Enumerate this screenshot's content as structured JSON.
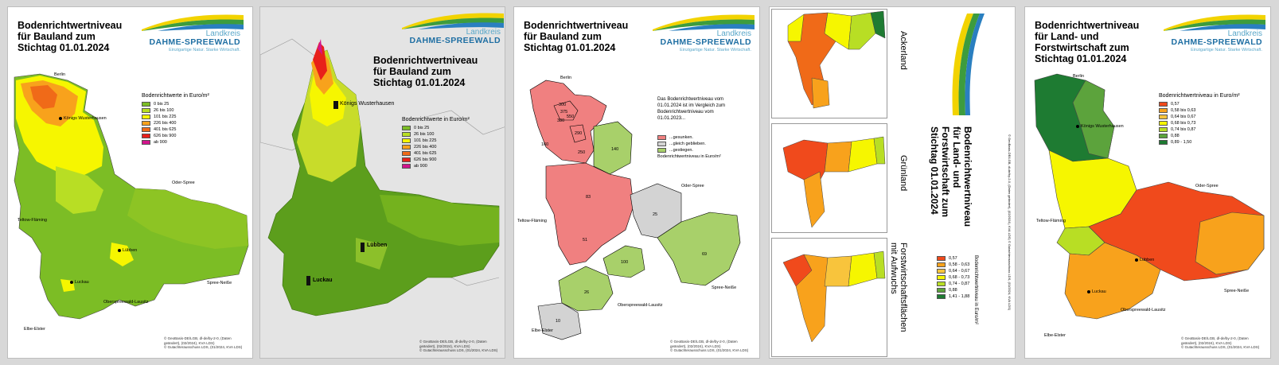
{
  "panel1": {
    "title": "Bodenrichtwertniveau\nfür Bauland zum\nStichtag 01.01.2024",
    "legend_title": "Bodenrichtwerte in Euro/m²",
    "legend": [
      {
        "label": "0 bis 25",
        "color": "#7cbd25"
      },
      {
        "label": "26 bis 100",
        "color": "#b8de24"
      },
      {
        "label": "101 bis 225",
        "color": "#f6f600"
      },
      {
        "label": "226 bis 400",
        "color": "#f8a21c"
      },
      {
        "label": "401 bis 625",
        "color": "#f06a18"
      },
      {
        "label": "626 bis 900",
        "color": "#e8201a"
      },
      {
        "label": "ab 900",
        "color": "#d2148c"
      }
    ],
    "places": [
      "Berlin",
      "Königs Wusterhausen",
      "Oder-Spree",
      "Teltow-Fläming",
      "Lübben",
      "Luckau",
      "Spree-Neiße",
      "Oberspreewald-Lausitz",
      "Elbe-Elster"
    ],
    "credit": "© GeoBasis-DE/LGB, dl-de/by-2-0, (Daten\ngeändert), (02/2024), KVA LDS)\n© Gutachterausschuss LDS, (01/2024, KVA LDS)"
  },
  "panel2": {
    "title": "Bodenrichtwertniveau\nfür Bauland zum\nStichtag 01.01.2024",
    "legend_title": "Bodenrichtwerte in Euro/m²",
    "legend": [
      {
        "label": "0 bis 25",
        "color": "#7cbd25"
      },
      {
        "label": "26 bis 100",
        "color": "#b8de24"
      },
      {
        "label": "101 bis 225",
        "color": "#f6f600"
      },
      {
        "label": "226 bis 400",
        "color": "#f8a21c"
      },
      {
        "label": "401 bis 625",
        "color": "#f06a18"
      },
      {
        "label": "626 bis 900",
        "color": "#e8201a"
      },
      {
        "label": "ab 900",
        "color": "#d2148c"
      }
    ],
    "places": [
      "Königs Wusterhausen",
      "Lübben",
      "Luckau"
    ],
    "credit": "© GeoBasis-DE/LGB, dl-de/by-2-0, (Daten\ngeändert), (02/2024), KVA LDS)\n© Gutachterausschuss LDS, (01/2024, KVA LDS)"
  },
  "panel3": {
    "title": "Bodenrichtwertniveau\nfür Bauland zum\nStichtag 01.01.2024",
    "note": "Das Bodenrichtwertniveau vom\n01.01.2024 ist im Vergleich zum\nBodenrichtwertniveau vom\n01.01.2023...",
    "legend": [
      {
        "label": "...gesunken.",
        "color": "#f08080"
      },
      {
        "label": "...gleich geblieben.",
        "color": "#d3d3d3"
      },
      {
        "label": "...gestiegen.",
        "color": "#a8d06a"
      }
    ],
    "legend_footer": "Bodenrichtwertniveau in Euro/m²",
    "values": [
      "300",
      "375",
      "550",
      "380",
      "290",
      "160",
      "250",
      "140",
      "83",
      "25",
      "51",
      "100",
      "69",
      "26",
      "10"
    ],
    "places": [
      "Berlin",
      "Oder-Spree",
      "Teltow-Fläming",
      "Spree-Neiße",
      "Oberspreewald-Lausitz",
      "Elbe-Elster"
    ],
    "credit": "© GeoBasis-DE/LGB, dl-de/by-2-0, (Daten\ngeändert), (02/2024), KVA LDS)\n© Gutachterausschuss LDS, (01/2024, KVA LDS)"
  },
  "panel4": {
    "title": "Bodenrichtwertniveau\nfür Land- und\nForstwirtschaft zum\nStichtag 01.01.2024",
    "labels": [
      "Ackerland",
      "Grünland",
      "Forstwirtschaftsflächen\nmit Aufwuchs"
    ],
    "legend_title": "Bodenrichtwertniveau in Euro/m²",
    "legend": [
      {
        "label": "0,57",
        "color": "#f04a1c"
      },
      {
        "label": "0,58 - 0,63",
        "color": "#f8a21c"
      },
      {
        "label": "0,64 - 0,67",
        "color": "#f8c43c"
      },
      {
        "label": "0,68 - 0,73",
        "color": "#f6f600"
      },
      {
        "label": "0,74 - 0,87",
        "color": "#b8de24"
      },
      {
        "label": "0,88",
        "color": "#5ca33c"
      },
      {
        "label": "1,41 - 1,88",
        "color": "#1e7b32"
      }
    ],
    "credit": "© GeoBasis-DE/LGB, dl-de/by-2-0, (Daten geändert), (02/2024), KVA LDS)  © Gutachterausschuss LDS, (01/2024, KVA LDS)"
  },
  "panel5": {
    "title": "Bodenrichtwertniveau\nfür Land- und\nForstwirtschaft zum\nStichtag 01.01.2024",
    "legend_title": "Bodenrichtwertniveau in Euro/m²",
    "legend": [
      {
        "label": "0,57",
        "color": "#f04a1c"
      },
      {
        "label": "0,58 bis 0,63",
        "color": "#f8a21c"
      },
      {
        "label": "0,64 bis 0,67",
        "color": "#f8c43c"
      },
      {
        "label": "0,68 bis 0,73",
        "color": "#f6f600"
      },
      {
        "label": "0,74 bis 0,87",
        "color": "#b8de24"
      },
      {
        "label": "0,88",
        "color": "#5ca33c"
      },
      {
        "label": "0,89 - 1,50",
        "color": "#1e7b32"
      }
    ],
    "places": [
      "Berlin",
      "Königs Wusterhausen",
      "Oder-Spree",
      "Teltow-Fläming",
      "Lübben",
      "Luckau",
      "Spree-Neiße",
      "Oberspreewald-Lausitz",
      "Elbe-Elster"
    ],
    "credit": "© GeoBasis-DE/LGB, dl-de/by-2-0, (Daten\ngeändert), (02/2024), KVA LDS)\n© Gutachterausschuss LDS, (01/2024, KVA LDS)"
  },
  "logo": {
    "line1": "Landkreis",
    "line2": "DAHME-SPREEWALD",
    "line3": "Einzigartige Natur. Starke Wirtschaft."
  }
}
